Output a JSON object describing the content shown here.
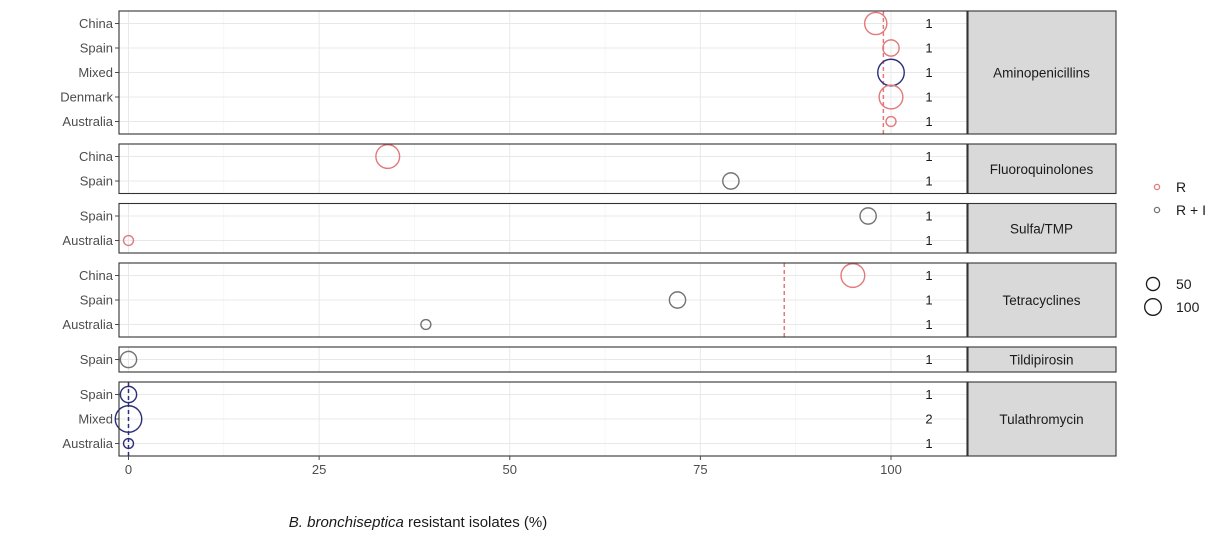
{
  "chart_data": {
    "type": "scatter",
    "xlabel_italic": "B. bronchiseptica",
    "xlabel_rest": " resistant isolates (%)",
    "xlim": [
      -5,
      110
    ],
    "xticks": [
      0,
      25,
      50,
      75,
      100
    ],
    "grid": true,
    "legend_position": "right",
    "colors": {
      "R": "#e3797b",
      "R + I": "#737373",
      "overlap": "#2b2f7a"
    },
    "legend_type": [
      {
        "label": "R",
        "key": "R"
      },
      {
        "label": "R + I",
        "key": "R + I"
      }
    ],
    "legend_size": [
      {
        "label": "50",
        "value": 50
      },
      {
        "label": "100",
        "value": 100
      }
    ],
    "panels": [
      {
        "name": "Aminopenicillins",
        "rows": [
          "China",
          "Spain",
          "Mixed",
          "Denmark",
          "Australia"
        ],
        "counts": [
          "1",
          "1",
          "1",
          "1",
          "1"
        ],
        "mean": 99,
        "points": [
          {
            "country": "China",
            "value": 98,
            "size": 100,
            "type": "R"
          },
          {
            "country": "Spain",
            "value": 100,
            "size": 40,
            "type": "R"
          },
          {
            "country": "Mixed",
            "value": 100,
            "size": 160,
            "type": "overlap"
          },
          {
            "country": "Denmark",
            "value": 100,
            "size": 120,
            "type": "R"
          },
          {
            "country": "Australia",
            "value": 100,
            "size": 6,
            "type": "R"
          }
        ]
      },
      {
        "name": "Fluoroquinolones",
        "rows": [
          "China",
          "Spain"
        ],
        "counts": [
          "1",
          "1"
        ],
        "mean": null,
        "points": [
          {
            "country": "China",
            "value": 34,
            "size": 120,
            "type": "R"
          },
          {
            "country": "Spain",
            "value": 79,
            "size": 40,
            "type": "R + I"
          }
        ]
      },
      {
        "name": "Sulfa/TMP",
        "rows": [
          "Spain",
          "Australia"
        ],
        "counts": [
          "1",
          "1"
        ],
        "mean": null,
        "points": [
          {
            "country": "Spain",
            "value": 97,
            "size": 40,
            "type": "R + I"
          },
          {
            "country": "Australia",
            "value": 0,
            "size": 6,
            "type": "R"
          }
        ]
      },
      {
        "name": "Tetracyclines",
        "rows": [
          "China",
          "Spain",
          "Australia"
        ],
        "counts": [
          "1",
          "1",
          "1"
        ],
        "mean": 86,
        "points": [
          {
            "country": "China",
            "value": 95,
            "size": 120,
            "type": "R"
          },
          {
            "country": "Spain",
            "value": 72,
            "size": 40,
            "type": "R + I"
          },
          {
            "country": "Australia",
            "value": 39,
            "size": 6,
            "type": "R + I"
          }
        ]
      },
      {
        "name": "Tildipirosin",
        "rows": [
          "Spain"
        ],
        "counts": [
          "1"
        ],
        "mean": null,
        "points": [
          {
            "country": "Spain",
            "value": 0,
            "size": 40,
            "type": "R + I"
          }
        ]
      },
      {
        "name": "Tulathromycin",
        "rows": [
          "Spain",
          "Mixed",
          "Australia"
        ],
        "counts": [
          "1",
          "2",
          "1"
        ],
        "mean": 0,
        "points": [
          {
            "country": "Spain",
            "value": 0,
            "size": 40,
            "type": "overlap"
          },
          {
            "country": "Mixed",
            "value": 0,
            "size": 160,
            "type": "overlap"
          },
          {
            "country": "Australia",
            "value": 0,
            "size": 6,
            "type": "overlap"
          }
        ]
      }
    ]
  }
}
